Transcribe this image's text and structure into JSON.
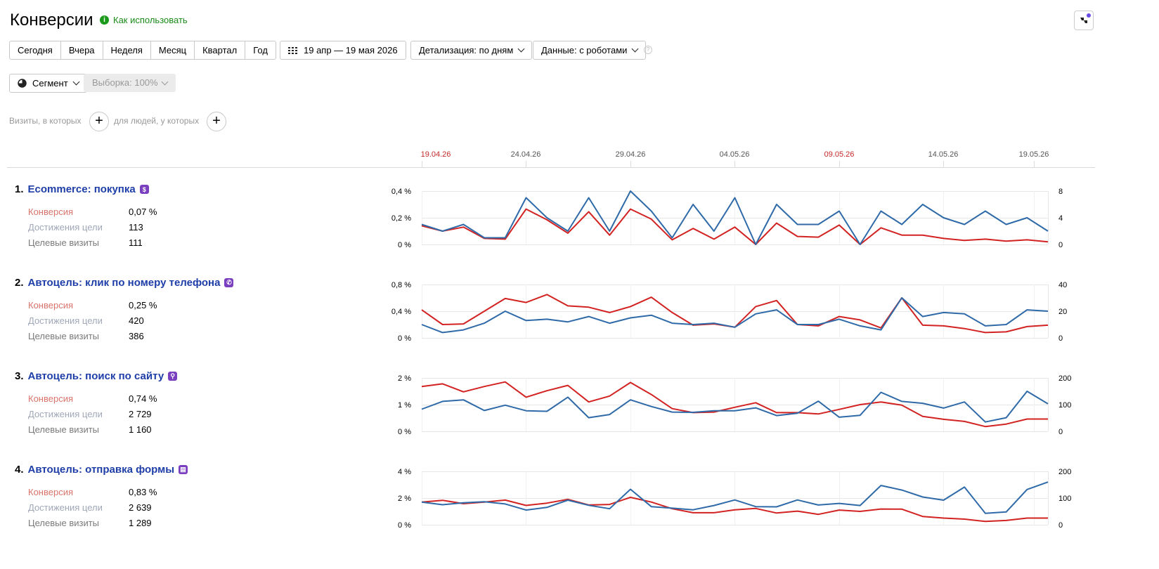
{
  "header": {
    "title": "Конверсии",
    "how_to_use": "Как использовать",
    "info_icon": "i"
  },
  "periods": [
    "Сегодня",
    "Вчера",
    "Неделя",
    "Месяц",
    "Квартал",
    "Год"
  ],
  "toolbar": {
    "date_range": "19 апр — 19 мая 2026",
    "detail": "Детализация: по дням",
    "data": "Данные: с роботами",
    "help": "?",
    "segment": "Сегмент",
    "sample": "Выборка: 100%"
  },
  "filters": {
    "visits_label": "Визиты, в которых",
    "people_label": "для людей, у которых",
    "add": "+"
  },
  "date_axis": {
    "labels": [
      {
        "text": "19.04.26",
        "highlight": true
      },
      {
        "text": "24.04.26",
        "highlight": false
      },
      {
        "text": "29.04.26",
        "highlight": false
      },
      {
        "text": "04.05.26",
        "highlight": false
      },
      {
        "text": "09.05.26",
        "highlight": true
      },
      {
        "text": "14.05.26",
        "highlight": false
      },
      {
        "text": "19.05.26",
        "highlight": false
      }
    ]
  },
  "colors": {
    "conversion_line": "#d32222",
    "visits_line": "#2f6aa8",
    "highlight_date": "#c62828",
    "goal_title": "#1e3ea8"
  },
  "goals": [
    {
      "number": "1.",
      "name": "Ecommerce: покупка",
      "icon": "dollar-icon",
      "icon_glyph": "$",
      "labels": {
        "conversion": "Конверсия",
        "achievements": "Достижения цели",
        "visits": "Целевые визиты"
      },
      "values": {
        "conversion": "0,07 %",
        "achievements": "113",
        "visits": "111"
      }
    },
    {
      "number": "2.",
      "name": "Автоцель: клик по номеру телефона",
      "icon": "phone-icon",
      "icon_glyph": "✆",
      "labels": {
        "conversion": "Конверсия",
        "achievements": "Достижения цели",
        "visits": "Целевые визиты"
      },
      "values": {
        "conversion": "0,25 %",
        "achievements": "420",
        "visits": "386"
      }
    },
    {
      "number": "3.",
      "name": "Автоцель: поиск по сайту",
      "icon": "search-icon",
      "icon_glyph": "⚲",
      "labels": {
        "conversion": "Конверсия",
        "achievements": "Достижения цели",
        "visits": "Целевые визиты"
      },
      "values": {
        "conversion": "0,74 %",
        "achievements": "2 729",
        "visits": "1 160"
      }
    },
    {
      "number": "4.",
      "name": "Автоцель: отправка формы",
      "icon": "form-icon",
      "icon_glyph": "▤",
      "labels": {
        "conversion": "Конверсия",
        "achievements": "Достижения цели",
        "visits": "Целевые визиты"
      },
      "values": {
        "conversion": "0,83 %",
        "achievements": "2 639",
        "visits": "1 289"
      }
    }
  ],
  "chart_data": [
    {
      "type": "line",
      "x_start": "19.04.26",
      "x_end": "19.05.26",
      "left_axis": {
        "ticks": [
          "0 %",
          "0,2 %",
          "0,4 %"
        ],
        "ylim": [
          0,
          0.4
        ]
      },
      "right_axis": {
        "ticks": [
          "0",
          "4",
          "8"
        ],
        "ylim": [
          0,
          8
        ]
      },
      "series": [
        {
          "axis": "left",
          "color": "#d32222",
          "values": [
            0.14,
            0.1,
            0.13,
            0.045,
            0.04,
            0.265,
            0.185,
            0.085,
            0.245,
            0.07,
            0.265,
            0.19,
            0.035,
            0.12,
            0.04,
            0.13,
            0.0,
            0.16,
            0.06,
            0.055,
            0.145,
            0.0,
            0.125,
            0.07,
            0.07,
            0.045,
            0.03,
            0.04,
            0.025,
            0.035,
            0.02
          ]
        },
        {
          "axis": "right",
          "color": "#2f6aa8",
          "values": [
            3,
            2,
            3,
            1,
            1,
            7,
            4,
            2,
            7,
            2,
            8,
            5,
            1,
            6,
            2,
            7,
            0,
            6,
            3,
            3,
            5,
            0,
            5,
            3,
            6,
            4,
            3,
            5,
            3,
            4,
            2
          ]
        }
      ]
    },
    {
      "type": "line",
      "x_start": "19.04.26",
      "x_end": "19.05.26",
      "left_axis": {
        "ticks": [
          "0 %",
          "0,4 %",
          "0,8 %"
        ],
        "ylim": [
          0,
          0.8
        ]
      },
      "right_axis": {
        "ticks": [
          "0",
          "20",
          "40"
        ],
        "ylim": [
          0,
          40
        ]
      },
      "series": [
        {
          "axis": "left",
          "color": "#d32222",
          "values": [
            0.42,
            0.2,
            0.21,
            0.4,
            0.59,
            0.53,
            0.65,
            0.48,
            0.46,
            0.38,
            0.47,
            0.61,
            0.38,
            0.19,
            0.21,
            0.16,
            0.47,
            0.56,
            0.2,
            0.18,
            0.32,
            0.27,
            0.15,
            0.6,
            0.19,
            0.18,
            0.14,
            0.08,
            0.09,
            0.17,
            0.19
          ]
        },
        {
          "axis": "right",
          "color": "#2f6aa8",
          "values": [
            10,
            4,
            6,
            11,
            20,
            13,
            14,
            12,
            16,
            11,
            15,
            17,
            11,
            10,
            11,
            8,
            18,
            21,
            10,
            10,
            14,
            9,
            6,
            30,
            16,
            19,
            18,
            9,
            10,
            21,
            20
          ]
        }
      ]
    },
    {
      "type": "line",
      "x_start": "19.04.26",
      "x_end": "19.05.26",
      "left_axis": {
        "ticks": [
          "0 %",
          "1 %",
          "2 %"
        ],
        "ylim": [
          0,
          2
        ]
      },
      "right_axis": {
        "ticks": [
          "0",
          "100",
          "200"
        ],
        "ylim": [
          0,
          200
        ]
      },
      "series": [
        {
          "axis": "left",
          "color": "#d32222",
          "values": [
            1.68,
            1.78,
            1.48,
            1.68,
            1.85,
            1.28,
            1.52,
            1.72,
            1.1,
            1.32,
            1.83,
            1.38,
            0.85,
            0.7,
            0.72,
            0.9,
            1.07,
            0.7,
            0.7,
            0.65,
            0.82,
            1.0,
            1.1,
            0.98,
            0.56,
            0.45,
            0.37,
            0.18,
            0.27,
            0.46,
            0.46
          ]
        },
        {
          "axis": "right",
          "color": "#2f6aa8",
          "values": [
            83,
            112,
            118,
            78,
            98,
            77,
            75,
            128,
            51,
            63,
            118,
            93,
            72,
            71,
            77,
            77,
            88,
            59,
            68,
            113,
            53,
            60,
            146,
            112,
            105,
            87,
            110,
            35,
            51,
            150,
            103
          ]
        }
      ]
    },
    {
      "type": "line",
      "x_start": "19.04.26",
      "x_end": "19.05.26",
      "left_axis": {
        "ticks": [
          "0 %",
          "2 %",
          "4 %"
        ],
        "ylim": [
          0,
          4
        ]
      },
      "right_axis": {
        "ticks": [
          "0",
          "100",
          "200"
        ],
        "ylim": [
          0,
          200
        ]
      },
      "series": [
        {
          "axis": "left",
          "color": "#d32222",
          "values": [
            1.7,
            1.83,
            1.58,
            1.7,
            1.85,
            1.45,
            1.62,
            1.9,
            1.48,
            1.52,
            2.05,
            1.7,
            1.2,
            0.9,
            0.9,
            1.12,
            1.22,
            0.88,
            1.02,
            0.78,
            1.1,
            1.0,
            1.18,
            1.17,
            0.62,
            0.5,
            0.42,
            0.25,
            0.32,
            0.5,
            0.5
          ]
        },
        {
          "axis": "right",
          "color": "#2f6aa8",
          "values": [
            85,
            75,
            82,
            86,
            78,
            55,
            65,
            92,
            73,
            60,
            133,
            68,
            62,
            56,
            72,
            93,
            68,
            67,
            93,
            74,
            80,
            72,
            147,
            130,
            104,
            92,
            141,
            43,
            48,
            132,
            160
          ]
        }
      ]
    }
  ]
}
